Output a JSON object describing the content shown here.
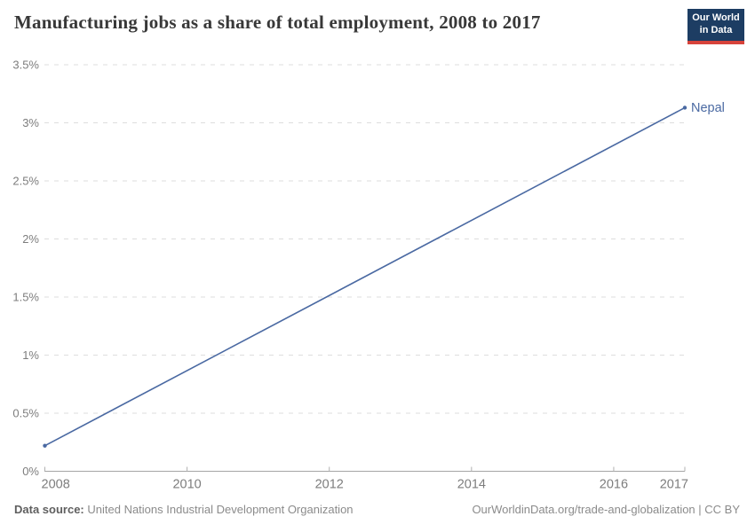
{
  "header": {
    "title": "Manufacturing jobs as a share of total employment, 2008 to 2017",
    "logo": {
      "line1": "Our World",
      "line2": "in Data"
    }
  },
  "footer": {
    "datasource_label": "Data source:",
    "datasource_value": "United Nations Industrial Development Organization",
    "credit": "OurWorldinData.org/trade-and-globalization | CC BY"
  },
  "colors": {
    "series_line": "#4a69a2",
    "series_label": "#4a69a2",
    "gridline": "#dddddd",
    "axis_line": "#a5a5a5",
    "tick_mark": "#b0b0b0",
    "axis_label": "#7d7d7d",
    "title_text": "#383838",
    "logo_background": "#1d3d63",
    "logo_underline": "#d7433b",
    "background": "#ffffff"
  },
  "chart_data": {
    "type": "line",
    "title": "Manufacturing jobs as a share of total employment, 2008 to 2017",
    "unit": "%",
    "xlabel": "",
    "ylabel": "",
    "xlim": [
      2008,
      2017
    ],
    "ylim": [
      0,
      3.5
    ],
    "grid": "horizontal-dashed",
    "legend_position": "end-of-line-label",
    "series": [
      {
        "name": "Nepal",
        "color": "#4a69a2",
        "points": [
          {
            "x": 2008,
            "y": 0.22
          },
          {
            "x": 2017,
            "y": 3.13
          }
        ]
      }
    ],
    "x_ticks": [
      {
        "value": 2008,
        "label": "2008"
      },
      {
        "value": 2010,
        "label": "2010"
      },
      {
        "value": 2012,
        "label": "2012"
      },
      {
        "value": 2014,
        "label": "2014"
      },
      {
        "value": 2016,
        "label": "2016"
      },
      {
        "value": 2017,
        "label": "2017"
      }
    ],
    "y_ticks": [
      {
        "value": 0,
        "label": "0%"
      },
      {
        "value": 0.5,
        "label": "0.5%"
      },
      {
        "value": 1,
        "label": "1%"
      },
      {
        "value": 1.5,
        "label": "1.5%"
      },
      {
        "value": 2,
        "label": "2%"
      },
      {
        "value": 2.5,
        "label": "2.5%"
      },
      {
        "value": 3,
        "label": "3%"
      },
      {
        "value": 3.5,
        "label": "3.5%"
      }
    ]
  }
}
